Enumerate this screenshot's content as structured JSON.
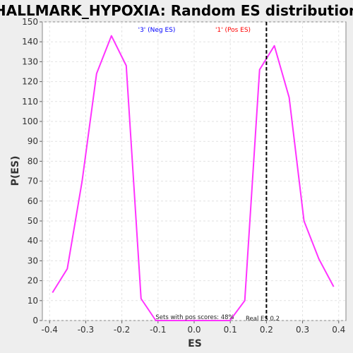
{
  "chart_data": {
    "type": "line",
    "title": "HALLMARK_HYPOXIA: Random ES distribution",
    "xlabel": "ES",
    "ylabel": "P(ES)",
    "xlim": [
      -0.42,
      0.42
    ],
    "ylim": [
      0,
      150
    ],
    "x_ticks": [
      -0.4,
      -0.3,
      -0.2,
      -0.1,
      0.0,
      0.1,
      0.2,
      0.3,
      0.4
    ],
    "x_tick_labels": [
      "-0.4",
      "-0.3",
      "-0.2",
      "-0.1",
      "0.0",
      "0.1",
      "0.2",
      "0.3",
      "0.4"
    ],
    "y_ticks": [
      0,
      10,
      20,
      30,
      40,
      50,
      60,
      70,
      80,
      90,
      100,
      110,
      120,
      130,
      140,
      150
    ],
    "grid": true,
    "series": [
      {
        "color": "#ff33ff",
        "x": [
          -0.392,
          -0.351,
          -0.31,
          -0.27,
          -0.229,
          -0.188,
          -0.147,
          -0.106,
          -0.065,
          -0.024,
          0.017,
          0.058,
          0.099,
          0.14,
          0.181,
          0.222,
          0.263,
          0.304,
          0.345,
          0.386
        ],
        "y": [
          14,
          26,
          70,
          124,
          143,
          128,
          11,
          0,
          0,
          0,
          0,
          0,
          0,
          10,
          126,
          138,
          112,
          50,
          31,
          17
        ]
      }
    ],
    "real_es_line": {
      "x": 0.2,
      "color": "#000000",
      "style": "dashed"
    },
    "annotations": {
      "neg_label": "'3' (Neg ES)",
      "neg_color": "#0000ff",
      "pos_label": "'1' (Pos ES)",
      "pos_color": "#ff0000",
      "pos_scores": "Sets with pos scores: 48%",
      "real_es": "Real ES 0.2"
    }
  }
}
